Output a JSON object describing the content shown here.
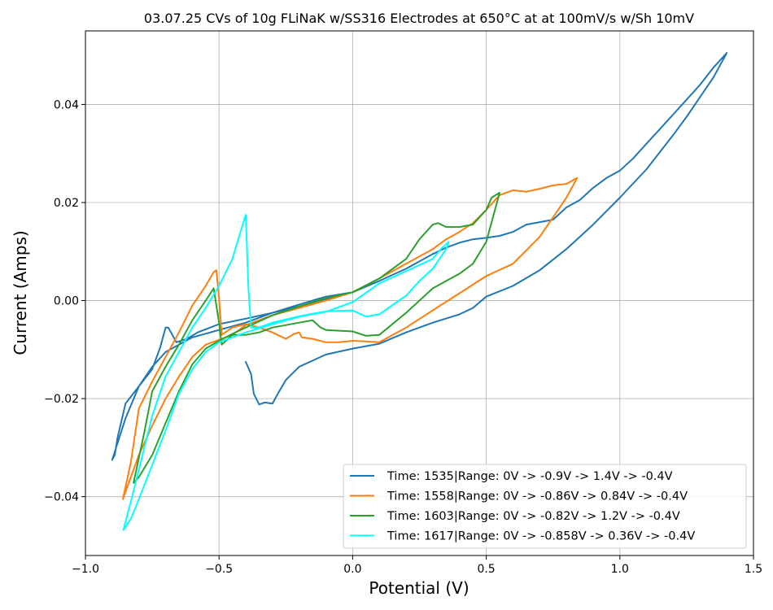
{
  "chart_data": {
    "type": "line",
    "title": "03.07.25 CVs of 10g FLiNaK w/SS316 Electrodes at 650°C at at 100mV/s w/Sh 10mV",
    "xlabel": "Potential (V)",
    "ylabel": "Current (Amps)",
    "xlim": [
      -1.0,
      1.5
    ],
    "ylim": [
      -0.052,
      0.055
    ],
    "xticks": [
      -1.0,
      -0.5,
      0.0,
      0.5,
      1.0,
      1.5
    ],
    "xtick_labels": [
      "−1.0",
      "−0.5",
      "0.0",
      "0.5",
      "1.0",
      "1.5"
    ],
    "yticks": [
      -0.04,
      -0.02,
      0.0,
      0.02,
      0.04
    ],
    "ytick_labels": [
      "−0.04",
      "−0.02",
      "0.00",
      "0.02",
      "0.04"
    ],
    "grid": true,
    "legend_position": "bottom-right",
    "series": [
      {
        "name": "Time: 1535|Range: 0V -> -0.9V -> 1.4V -> -0.4V",
        "color": "#1f77b4",
        "points": [
          [
            0.0,
            0.0017
          ],
          [
            -0.1,
            0.0003
          ],
          [
            -0.2,
            -0.0012
          ],
          [
            -0.3,
            -0.0025
          ],
          [
            -0.4,
            -0.0037
          ],
          [
            -0.5,
            -0.0048
          ],
          [
            -0.58,
            -0.0065
          ],
          [
            -0.62,
            -0.0078
          ],
          [
            -0.66,
            -0.0085
          ],
          [
            -0.68,
            -0.0065
          ],
          [
            -0.69,
            -0.0055
          ],
          [
            -0.7,
            -0.0055
          ],
          [
            -0.72,
            -0.0095
          ],
          [
            -0.75,
            -0.014
          ],
          [
            -0.8,
            -0.0175
          ],
          [
            -0.85,
            -0.021
          ],
          [
            -0.88,
            -0.028
          ],
          [
            -0.89,
            -0.0315
          ],
          [
            -0.9,
            -0.0325
          ],
          [
            -0.85,
            -0.024
          ],
          [
            -0.8,
            -0.0175
          ],
          [
            -0.75,
            -0.0135
          ],
          [
            -0.7,
            -0.0105
          ],
          [
            -0.6,
            -0.0075
          ],
          [
            -0.5,
            -0.006
          ],
          [
            -0.4,
            -0.0045
          ],
          [
            -0.3,
            -0.0025
          ],
          [
            -0.2,
            -0.0008
          ],
          [
            -0.1,
            0.0008
          ],
          [
            0.0,
            0.0017
          ],
          [
            0.1,
            0.004
          ],
          [
            0.2,
            0.0065
          ],
          [
            0.3,
            0.0095
          ],
          [
            0.35,
            0.0108
          ],
          [
            0.4,
            0.0118
          ],
          [
            0.45,
            0.0125
          ],
          [
            0.5,
            0.0128
          ],
          [
            0.55,
            0.0132
          ],
          [
            0.6,
            0.014
          ],
          [
            0.65,
            0.0155
          ],
          [
            0.7,
            0.016
          ],
          [
            0.75,
            0.0165
          ],
          [
            0.8,
            0.019
          ],
          [
            0.85,
            0.0205
          ],
          [
            0.9,
            0.023
          ],
          [
            0.95,
            0.025
          ],
          [
            1.0,
            0.0265
          ],
          [
            1.05,
            0.029
          ],
          [
            1.1,
            0.032
          ],
          [
            1.15,
            0.035
          ],
          [
            1.2,
            0.038
          ],
          [
            1.25,
            0.041
          ],
          [
            1.3,
            0.044
          ],
          [
            1.35,
            0.0475
          ],
          [
            1.4,
            0.0505
          ],
          [
            1.35,
            0.0455
          ],
          [
            1.3,
            0.0415
          ],
          [
            1.25,
            0.0375
          ],
          [
            1.2,
            0.0338
          ],
          [
            1.1,
            0.0268
          ],
          [
            1.0,
            0.021
          ],
          [
            0.9,
            0.0155
          ],
          [
            0.8,
            0.0105
          ],
          [
            0.7,
            0.0062
          ],
          [
            0.6,
            0.003
          ],
          [
            0.5,
            0.0008
          ],
          [
            0.45,
            -0.0015
          ],
          [
            0.4,
            -0.0028
          ],
          [
            0.3,
            -0.0045
          ],
          [
            0.2,
            -0.0065
          ],
          [
            0.1,
            -0.0088
          ],
          [
            0.0,
            -0.0098
          ],
          [
            -0.1,
            -0.011
          ],
          [
            -0.2,
            -0.0135
          ],
          [
            -0.25,
            -0.0162
          ],
          [
            -0.28,
            -0.019
          ],
          [
            -0.3,
            -0.021
          ],
          [
            -0.33,
            -0.0208
          ],
          [
            -0.35,
            -0.0212
          ],
          [
            -0.37,
            -0.019
          ],
          [
            -0.38,
            -0.015
          ],
          [
            -0.4,
            -0.0125
          ]
        ]
      },
      {
        "name": "Time: 1558|Range: 0V -> -0.86V -> 0.84V -> -0.4V",
        "color": "#ff7f0e",
        "points": [
          [
            0.0,
            0.0017
          ],
          [
            -0.1,
            0.0
          ],
          [
            -0.2,
            -0.0015
          ],
          [
            -0.3,
            -0.003
          ],
          [
            -0.4,
            -0.005
          ],
          [
            -0.45,
            -0.007
          ],
          [
            -0.5,
            -0.008
          ],
          [
            -0.55,
            -0.009
          ],
          [
            -0.6,
            -0.0115
          ],
          [
            -0.65,
            -0.0155
          ],
          [
            -0.7,
            -0.02
          ],
          [
            -0.75,
            -0.0255
          ],
          [
            -0.8,
            -0.0315
          ],
          [
            -0.83,
            -0.036
          ],
          [
            -0.86,
            -0.0405
          ],
          [
            -0.83,
            -0.033
          ],
          [
            -0.8,
            -0.022
          ],
          [
            -0.75,
            -0.0165
          ],
          [
            -0.7,
            -0.0115
          ],
          [
            -0.65,
            -0.0065
          ],
          [
            -0.6,
            -0.001
          ],
          [
            -0.55,
            0.003
          ],
          [
            -0.52,
            0.0058
          ],
          [
            -0.51,
            0.0062
          ],
          [
            -0.5,
            0.0005
          ],
          [
            -0.49,
            -0.007
          ],
          [
            -0.45,
            -0.0055
          ],
          [
            -0.4,
            -0.0048
          ],
          [
            -0.35,
            -0.0055
          ],
          [
            -0.3,
            -0.0065
          ],
          [
            -0.25,
            -0.0078
          ],
          [
            -0.22,
            -0.0068
          ],
          [
            -0.2,
            -0.0065
          ],
          [
            -0.19,
            -0.0075
          ],
          [
            -0.15,
            -0.0078
          ],
          [
            -0.1,
            -0.0085
          ],
          [
            -0.05,
            -0.0085
          ],
          [
            0.0,
            -0.0082
          ],
          [
            0.1,
            -0.0085
          ],
          [
            0.2,
            -0.0055
          ],
          [
            0.3,
            -0.002
          ],
          [
            0.4,
            0.0015
          ],
          [
            0.5,
            0.005
          ],
          [
            0.6,
            0.0075
          ],
          [
            0.7,
            0.013
          ],
          [
            0.8,
            0.021
          ],
          [
            0.84,
            0.025
          ],
          [
            0.8,
            0.0238
          ],
          [
            0.75,
            0.0235
          ],
          [
            0.7,
            0.0228
          ],
          [
            0.65,
            0.0222
          ],
          [
            0.6,
            0.0225
          ],
          [
            0.55,
            0.0215
          ],
          [
            0.5,
            0.0185
          ],
          [
            0.45,
            0.0158
          ],
          [
            0.4,
            0.014
          ],
          [
            0.35,
            0.0125
          ],
          [
            0.3,
            0.0105
          ],
          [
            0.2,
            0.0075
          ],
          [
            0.1,
            0.0045
          ],
          [
            0.0,
            0.0017
          ]
        ]
      },
      {
        "name": "Time: 1603|Range: 0V -> -0.82V -> 1.2V -> -0.4V",
        "color": "#2ca02c",
        "points": [
          [
            0.0,
            0.0017
          ],
          [
            -0.1,
            0.0005
          ],
          [
            -0.2,
            -0.0012
          ],
          [
            -0.3,
            -0.003
          ],
          [
            -0.4,
            -0.0055
          ],
          [
            -0.45,
            -0.0068
          ],
          [
            -0.5,
            -0.0082
          ],
          [
            -0.55,
            -0.0098
          ],
          [
            -0.6,
            -0.013
          ],
          [
            -0.65,
            -0.0185
          ],
          [
            -0.7,
            -0.025
          ],
          [
            -0.75,
            -0.0315
          ],
          [
            -0.8,
            -0.036
          ],
          [
            -0.82,
            -0.0372
          ],
          [
            -0.78,
            -0.027
          ],
          [
            -0.75,
            -0.0185
          ],
          [
            -0.7,
            -0.0135
          ],
          [
            -0.65,
            -0.009
          ],
          [
            -0.6,
            -0.004
          ],
          [
            -0.55,
            0.0
          ],
          [
            -0.52,
            0.0025
          ],
          [
            -0.5,
            -0.0045
          ],
          [
            -0.49,
            -0.009
          ],
          [
            -0.45,
            -0.007
          ],
          [
            -0.4,
            -0.007
          ],
          [
            -0.35,
            -0.0065
          ],
          [
            -0.3,
            -0.0055
          ],
          [
            -0.2,
            -0.0045
          ],
          [
            -0.15,
            -0.004
          ],
          [
            -0.12,
            -0.0055
          ],
          [
            -0.1,
            -0.006
          ],
          [
            0.0,
            -0.0063
          ],
          [
            0.05,
            -0.0072
          ],
          [
            0.1,
            -0.007
          ],
          [
            0.2,
            -0.0025
          ],
          [
            0.3,
            0.0025
          ],
          [
            0.4,
            0.0055
          ],
          [
            0.45,
            0.0075
          ],
          [
            0.5,
            0.012
          ],
          [
            0.53,
            0.018
          ],
          [
            0.55,
            0.022
          ],
          [
            0.52,
            0.021
          ],
          [
            0.5,
            0.0185
          ],
          [
            0.45,
            0.0155
          ],
          [
            0.4,
            0.015
          ],
          [
            0.35,
            0.015
          ],
          [
            0.32,
            0.0158
          ],
          [
            0.3,
            0.0155
          ],
          [
            0.25,
            0.0125
          ],
          [
            0.2,
            0.0085
          ],
          [
            0.1,
            0.0045
          ],
          [
            0.0,
            0.0017
          ]
        ]
      },
      {
        "name": "Time: 1617|Range: 0V -> -0.858V -> 0.36V -> -0.4V",
        "color": "#00ffff",
        "points": [
          [
            0.0,
            -0.0003
          ],
          [
            -0.1,
            -0.0023
          ],
          [
            -0.2,
            -0.0033
          ],
          [
            -0.3,
            -0.0048
          ],
          [
            -0.4,
            -0.0065
          ],
          [
            -0.5,
            -0.0085
          ],
          [
            -0.55,
            -0.0105
          ],
          [
            -0.6,
            -0.014
          ],
          [
            -0.65,
            -0.019
          ],
          [
            -0.7,
            -0.0265
          ],
          [
            -0.75,
            -0.0335
          ],
          [
            -0.8,
            -0.0405
          ],
          [
            -0.83,
            -0.0445
          ],
          [
            -0.858,
            -0.0468
          ],
          [
            -0.83,
            -0.041
          ],
          [
            -0.8,
            -0.0345
          ],
          [
            -0.75,
            -0.0235
          ],
          [
            -0.7,
            -0.0155
          ],
          [
            -0.65,
            -0.0105
          ],
          [
            -0.6,
            -0.0055
          ],
          [
            -0.55,
            -0.0015
          ],
          [
            -0.5,
            0.003
          ],
          [
            -0.45,
            0.0085
          ],
          [
            -0.42,
            0.014
          ],
          [
            -0.4,
            0.0175
          ],
          [
            -0.39,
            0.0025
          ],
          [
            -0.38,
            -0.0055
          ],
          [
            -0.35,
            -0.0055
          ],
          [
            -0.3,
            -0.0045
          ],
          [
            -0.2,
            -0.0032
          ],
          [
            -0.1,
            -0.0022
          ],
          [
            0.0,
            -0.002
          ],
          [
            0.05,
            -0.0033
          ],
          [
            0.1,
            -0.0028
          ],
          [
            0.2,
            0.001
          ],
          [
            0.25,
            0.004
          ],
          [
            0.3,
            0.0065
          ],
          [
            0.35,
            0.0105
          ],
          [
            0.36,
            0.012
          ],
          [
            0.33,
            0.0105
          ],
          [
            0.3,
            0.0085
          ],
          [
            0.2,
            0.006
          ],
          [
            0.1,
            0.0035
          ],
          [
            0.0,
            -0.0003
          ]
        ]
      }
    ]
  }
}
